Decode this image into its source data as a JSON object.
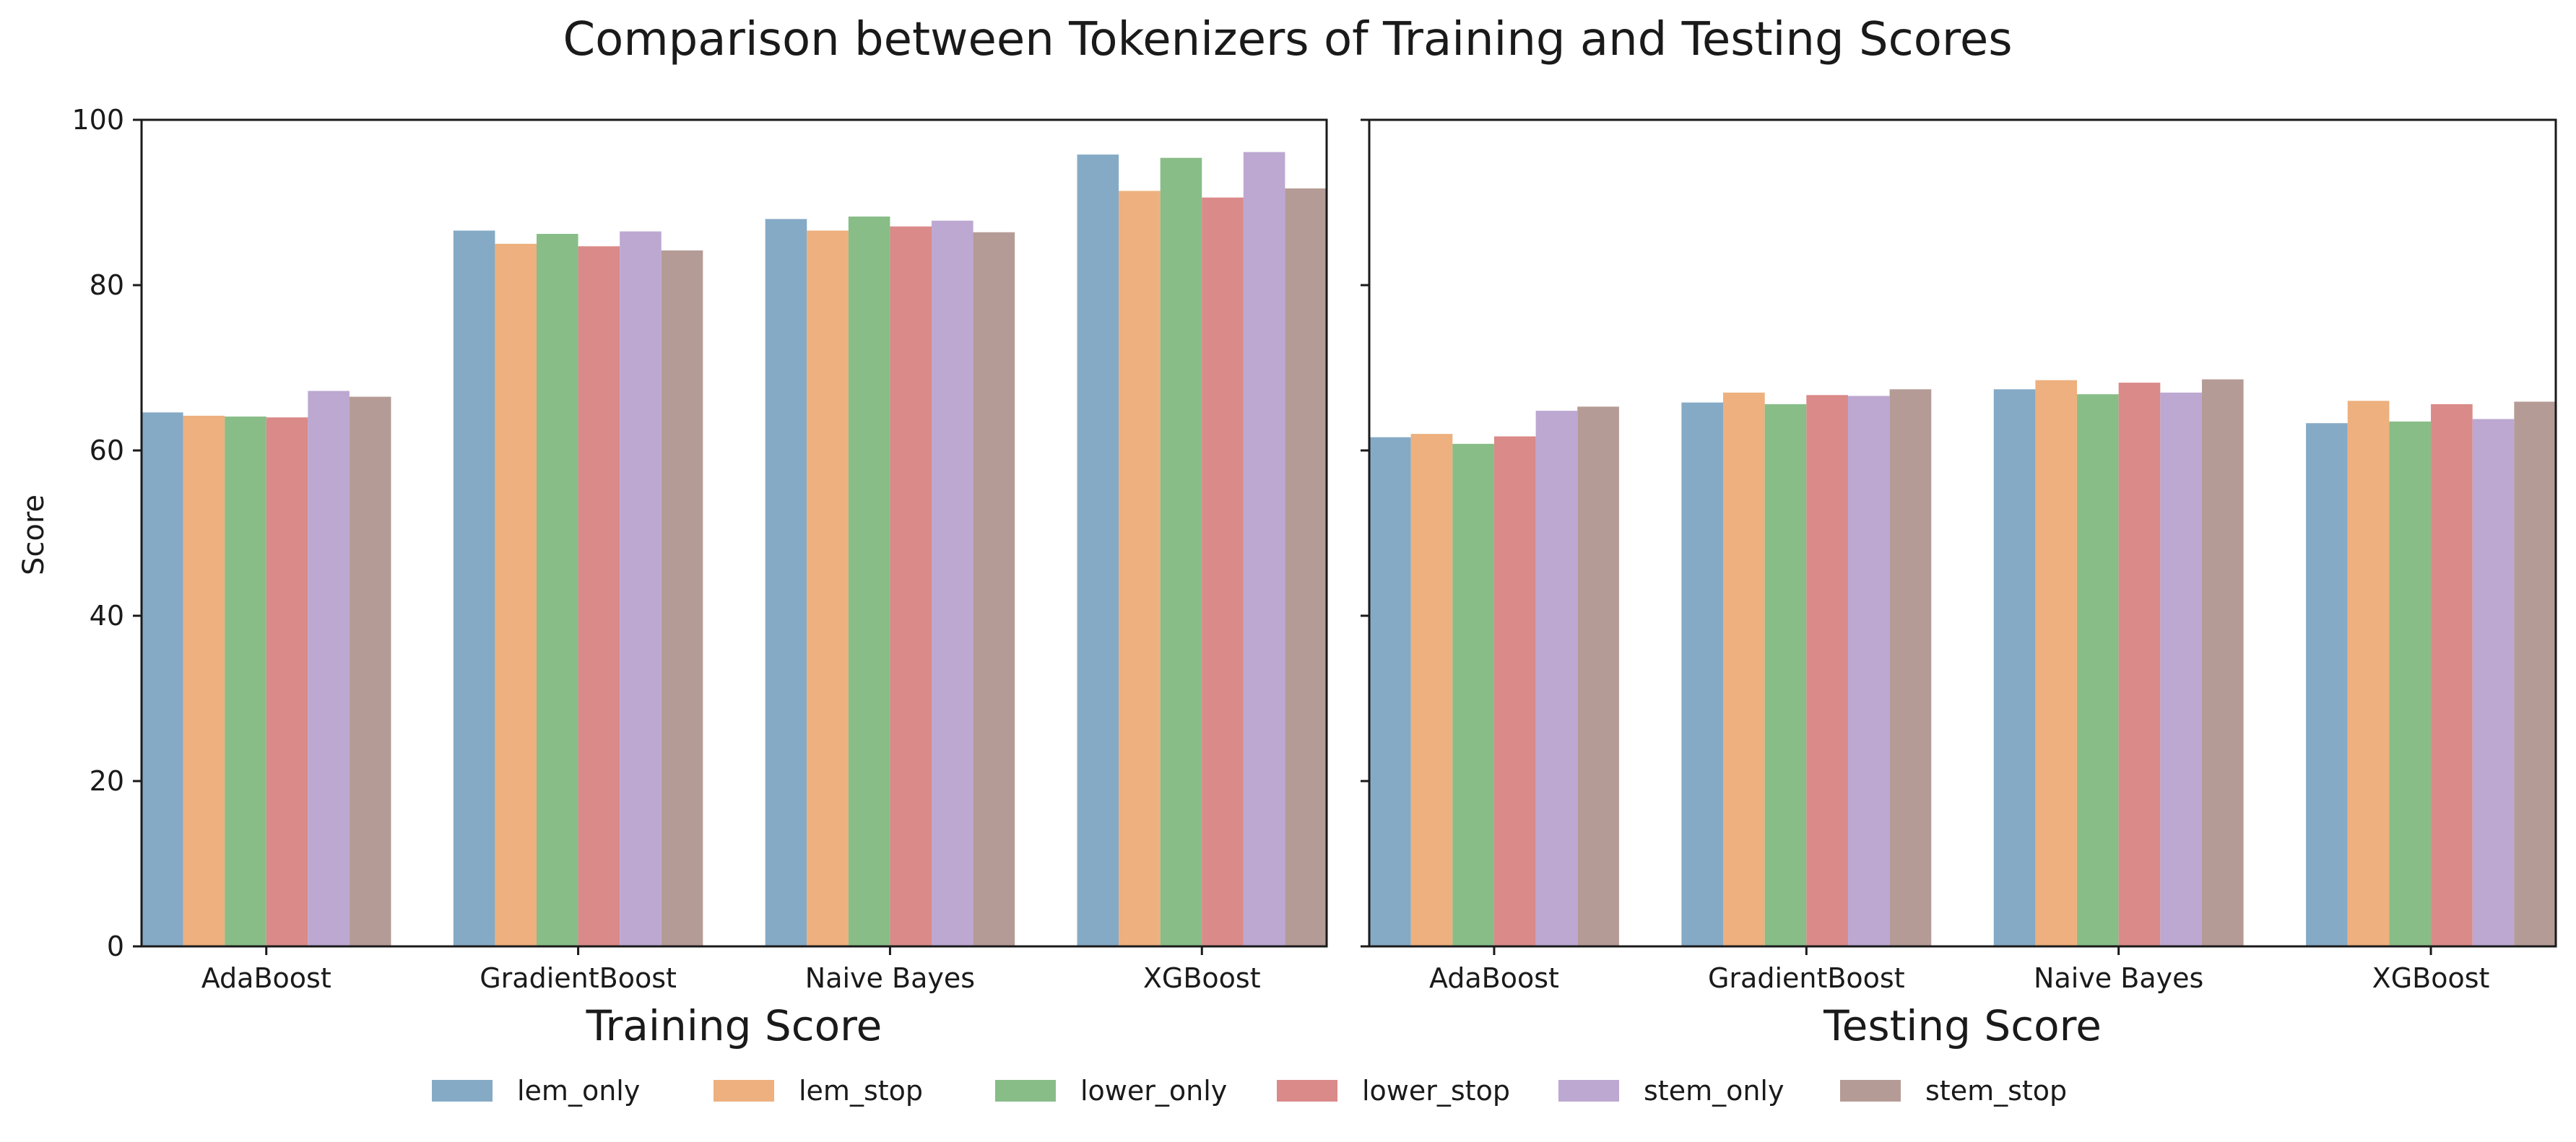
{
  "chart_data": {
    "type": "bar",
    "title": "Comparison between Tokenizers of Training and Testing Scores",
    "ylabel": "Score",
    "ylim": [
      0,
      100
    ],
    "yticks": [
      0,
      20,
      40,
      60,
      80,
      100
    ],
    "categories": [
      "AdaBoost",
      "GradientBoost",
      "Naive Bayes",
      "XGBoost"
    ],
    "legend": {
      "placement": "bottom-center",
      "ncol": 6
    },
    "grid": false,
    "series_colors": {
      "lem_only": "#85aac6",
      "lem_stop": "#edb07e",
      "lower_only": "#88bd87",
      "lower_stop": "#da8a88",
      "stem_only": "#bca8d1",
      "stem_stop": "#b59b96"
    },
    "subplots": [
      {
        "xlabel": "Training Score",
        "series": [
          {
            "name": "lem_only",
            "values": [
              64.6,
              86.6,
              88.0,
              95.8
            ]
          },
          {
            "name": "lem_stop",
            "values": [
              64.2,
              85.0,
              86.6,
              91.4
            ]
          },
          {
            "name": "lower_only",
            "values": [
              64.1,
              86.2,
              88.3,
              95.4
            ]
          },
          {
            "name": "lower_stop",
            "values": [
              64.0,
              84.7,
              87.1,
              90.6
            ]
          },
          {
            "name": "stem_only",
            "values": [
              67.2,
              86.5,
              87.8,
              96.1
            ]
          },
          {
            "name": "stem_stop",
            "values": [
              66.5,
              84.2,
              86.4,
              91.7
            ]
          }
        ]
      },
      {
        "xlabel": "Testing Score",
        "series": [
          {
            "name": "lem_only",
            "values": [
              61.6,
              65.8,
              67.4,
              63.3
            ]
          },
          {
            "name": "lem_stop",
            "values": [
              62.0,
              67.0,
              68.5,
              66.0
            ]
          },
          {
            "name": "lower_only",
            "values": [
              60.8,
              65.6,
              66.8,
              63.5
            ]
          },
          {
            "name": "lower_stop",
            "values": [
              61.7,
              66.7,
              68.2,
              65.6
            ]
          },
          {
            "name": "stem_only",
            "values": [
              64.8,
              66.6,
              67.0,
              63.8
            ]
          },
          {
            "name": "stem_stop",
            "values": [
              65.3,
              67.4,
              68.6,
              65.9
            ]
          }
        ]
      }
    ]
  }
}
